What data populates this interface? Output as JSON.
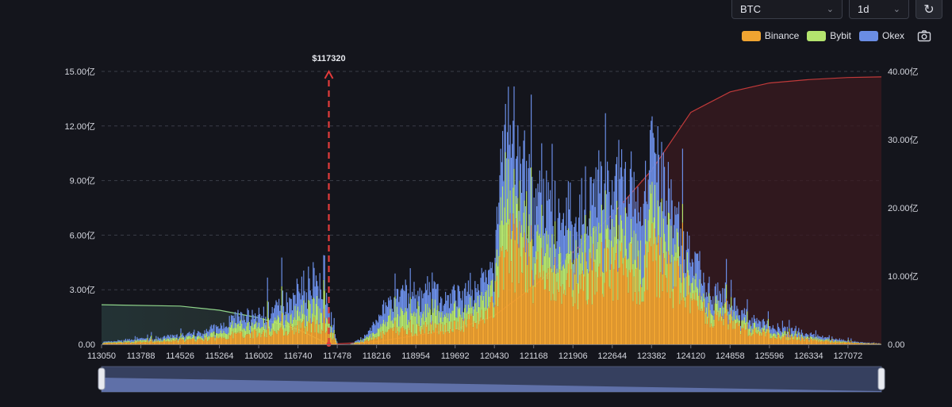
{
  "controls": {
    "symbol": "BTC",
    "period": "1d",
    "refresh_icon": "refresh-icon",
    "screenshot_icon": "camera-icon"
  },
  "chart_data": {
    "type": "bar",
    "stacked": true,
    "title": "",
    "current_price": 117320,
    "current_price_label": "$117320",
    "x_range": [
      113050,
      127700
    ],
    "x_tick_labels": [
      "113050",
      "113788",
      "114526",
      "115264",
      "116002",
      "116740",
      "117478",
      "118216",
      "118954",
      "119692",
      "120430",
      "121168",
      "121906",
      "122644",
      "123382",
      "124120",
      "124858",
      "125596",
      "126334",
      "127072"
    ],
    "y_left_range": [
      0,
      15
    ],
    "y_left_ticks": [
      "0.00",
      "3.00亿",
      "6.00亿",
      "9.00亿",
      "12.00亿",
      "15.00亿"
    ],
    "y_right_range": [
      0,
      40
    ],
    "y_right_ticks": [
      "0.00",
      "10.00亿",
      "20.00亿",
      "30.00亿",
      "40.00亿"
    ],
    "grid": true,
    "legend_position": "top-right",
    "colors": {
      "Binance": "#f0a431",
      "Bybit": "#b4e46e",
      "Okex": "#6a8de4"
    },
    "series": [
      {
        "name": "Binance"
      },
      {
        "name": "Bybit"
      },
      {
        "name": "Okex"
      }
    ],
    "profile": {
      "x": [
        113050,
        113400,
        113788,
        114200,
        114526,
        114900,
        115264,
        115500,
        115800,
        116002,
        116300,
        116500,
        116740,
        116900,
        117100,
        117300,
        117478,
        117700,
        118000,
        118216,
        118500,
        118954,
        119300,
        119692,
        120000,
        120200,
        120430,
        120600,
        120800,
        121000,
        121168,
        121500,
        121906,
        122200,
        122644,
        122900,
        123200,
        123382,
        123600,
        123800,
        124120,
        124500,
        124858,
        125200,
        125596,
        126000,
        126334,
        126700,
        127072,
        127400,
        127700
      ],
      "binance": [
        0.05,
        0.08,
        0.12,
        0.15,
        0.2,
        0.25,
        0.35,
        0.5,
        0.6,
        0.55,
        0.7,
        0.8,
        0.9,
        1.0,
        1.1,
        0.7,
        0.0,
        0.0,
        0.15,
        0.4,
        0.7,
        0.8,
        0.9,
        1.0,
        1.2,
        1.5,
        2.2,
        5.0,
        5.0,
        4.5,
        4.0,
        3.5,
        3.2,
        3.8,
        4.2,
        4.0,
        3.6,
        4.8,
        4.0,
        3.5,
        2.5,
        1.6,
        1.0,
        0.7,
        0.5,
        0.35,
        0.25,
        0.15,
        0.08,
        0.04,
        0.02
      ],
      "bybit": [
        0.03,
        0.05,
        0.08,
        0.1,
        0.12,
        0.15,
        0.25,
        0.4,
        0.45,
        0.4,
        0.55,
        0.7,
        0.8,
        0.9,
        1.0,
        0.5,
        0.0,
        0.0,
        0.1,
        0.4,
        0.8,
        0.9,
        0.9,
        0.8,
        0.8,
        0.9,
        1.0,
        2.5,
        2.3,
        2.0,
        1.7,
        1.5,
        1.4,
        1.7,
        2.0,
        1.8,
        1.6,
        2.3,
        1.7,
        1.4,
        1.0,
        0.6,
        0.35,
        0.3,
        0.2,
        0.15,
        0.1,
        0.07,
        0.04,
        0.02,
        0.01
      ],
      "okex": [
        0.04,
        0.07,
        0.1,
        0.12,
        0.15,
        0.2,
        0.35,
        0.5,
        0.55,
        0.55,
        0.75,
        0.9,
        1.1,
        1.3,
        1.6,
        0.8,
        0.0,
        0.0,
        0.15,
        0.6,
        1.0,
        1.1,
        1.0,
        0.9,
        0.9,
        1.0,
        1.2,
        3.3,
        3.2,
        3.0,
        2.6,
        2.2,
        2.1,
        2.6,
        3.0,
        2.8,
        2.6,
        3.4,
        2.5,
        2.0,
        1.5,
        0.9,
        0.6,
        0.45,
        0.35,
        0.25,
        0.18,
        0.12,
        0.07,
        0.03,
        0.01
      ]
    },
    "cumulative_short_left_of_price": {
      "x": [
        113050,
        114526,
        115264,
        116002,
        116740,
        117320
      ],
      "y": [
        5.8,
        5.6,
        5.0,
        3.9,
        2.2,
        0.0
      ]
    },
    "cumulative_long_right_of_price": {
      "x": [
        117320,
        118216,
        119692,
        120430,
        121168,
        121906,
        122644,
        123382,
        124120,
        124858,
        125596,
        126334,
        127072,
        127700
      ],
      "y": [
        0.0,
        0.4,
        2.2,
        4.2,
        8.5,
        13.5,
        19.0,
        25.5,
        34.0,
        37.0,
        38.3,
        38.8,
        39.1,
        39.2
      ]
    }
  }
}
